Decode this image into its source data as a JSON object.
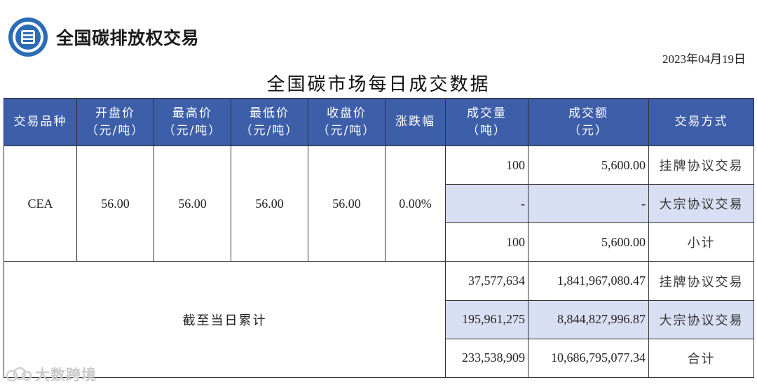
{
  "header": {
    "brand": "全国碳排放权交易"
  },
  "date": "2023年04月19日",
  "title": "全国碳市场每日成交数据",
  "table": {
    "columns": [
      {
        "line1": "交易品种",
        "line2": ""
      },
      {
        "line1": "开盘价",
        "line2": "（元/吨）"
      },
      {
        "line1": "最高价",
        "line2": "（元/吨）"
      },
      {
        "line1": "最低价",
        "line2": "（元/吨）"
      },
      {
        "line1": "收盘价",
        "line2": "（元/吨）"
      },
      {
        "line1": "涨跌幅",
        "line2": ""
      },
      {
        "line1": "成交量",
        "line2": "（吨）"
      },
      {
        "line1": "成交额",
        "line2": "（元）"
      },
      {
        "line1": "交易方式",
        "line2": ""
      }
    ],
    "daily": {
      "product": "CEA",
      "open": "56.00",
      "high": "56.00",
      "low": "56.00",
      "close": "56.00",
      "change": "0.00%",
      "rows": [
        {
          "volume": "100",
          "amount": "5,600.00",
          "method": "挂牌协议交易"
        },
        {
          "volume": "-",
          "amount": "-",
          "method": "大宗协议交易"
        },
        {
          "volume": "100",
          "amount": "5,600.00",
          "method": "小计"
        }
      ]
    },
    "cumulative": {
      "label": "截至当日累计",
      "rows": [
        {
          "volume": "37,577,634",
          "amount": "1,841,967,080.47",
          "method": "挂牌协议交易"
        },
        {
          "volume": "195,961,275",
          "amount": "8,844,827,996.87",
          "method": "大宗协议交易"
        },
        {
          "volume": "233,538,909",
          "amount": "10,686,795,077.34",
          "method": "合计"
        }
      ]
    }
  },
  "watermark": {
    "text": "大数跨境",
    "icon": "cloud-icon"
  },
  "colors": {
    "header_bg": "#3d5ea8",
    "shade_bg": "#d9dff2",
    "logo_blue": "#2b6cb5"
  }
}
